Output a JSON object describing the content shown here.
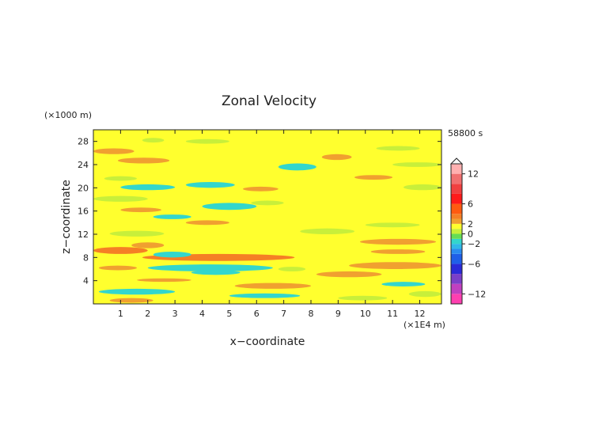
{
  "chart_data": {
    "type": "heatmap",
    "title": "Zonal Velocity",
    "xlabel": "x−coordinate",
    "ylabel": "z−coordinate",
    "x_unit": "(×1E4 m)",
    "y_unit": "(×1000 m)",
    "time_label": "58800 s",
    "xlim": [
      0,
      12.8
    ],
    "ylim": [
      0,
      30
    ],
    "x_ticks": [
      1,
      2,
      3,
      4,
      5,
      6,
      7,
      8,
      9,
      10,
      11,
      12
    ],
    "y_ticks": [
      4,
      8,
      12,
      16,
      20,
      24,
      28
    ],
    "colorbar": {
      "range": [
        -14,
        14
      ],
      "tick_values": [
        12,
        6,
        2,
        0,
        -2,
        -6,
        -12
      ],
      "tick_labels": [
        "12",
        "6",
        "2",
        "0",
        "−2",
        "−6",
        "−12"
      ],
      "levels": [
        {
          "from": -14,
          "to": -12,
          "color": "#ff3fb0"
        },
        {
          "from": -12,
          "to": -10,
          "color": "#c040c0"
        },
        {
          "from": -10,
          "to": -8,
          "color": "#7a3fc8"
        },
        {
          "from": -8,
          "to": -6,
          "color": "#2a2ad8"
        },
        {
          "from": -6,
          "to": -4,
          "color": "#1f5fe8"
        },
        {
          "from": -4,
          "to": -3,
          "color": "#2a8cf0"
        },
        {
          "from": -3,
          "to": -2,
          "color": "#30b8e8"
        },
        {
          "from": -2,
          "to": -1,
          "color": "#33d6cc"
        },
        {
          "from": -1,
          "to": 0,
          "color": "#66dd55"
        },
        {
          "from": 0,
          "to": 1,
          "color": "#c8ef3a"
        },
        {
          "from": 1,
          "to": 2,
          "color": "#ffff2e"
        },
        {
          "from": 2,
          "to": 3,
          "color": "#f0a030"
        },
        {
          "from": 3,
          "to": 4,
          "color": "#f57f25"
        },
        {
          "from": 4,
          "to": 6,
          "color": "#ff5a10"
        },
        {
          "from": 6,
          "to": 8,
          "color": "#ff1a1a"
        },
        {
          "from": 8,
          "to": 10,
          "color": "#f04040"
        },
        {
          "from": 10,
          "to": 12,
          "color": "#f07070"
        },
        {
          "from": 12,
          "to": 14,
          "color": "#ffb0b0"
        }
      ]
    },
    "background_value": 1.5,
    "features": [
      {
        "x": [
          0.0,
          1.5
        ],
        "z": [
          25.8,
          26.8
        ],
        "v": 2.5
      },
      {
        "x": [
          0.9,
          2.8
        ],
        "z": [
          24.2,
          25.2
        ],
        "v": 2.5
      },
      {
        "x": [
          1.8,
          2.6
        ],
        "z": [
          27.8,
          28.6
        ],
        "v": 0.5
      },
      {
        "x": [
          0.4,
          1.6
        ],
        "z": [
          21.2,
          22.0
        ],
        "v": 0.5
      },
      {
        "x": [
          3.4,
          5.0
        ],
        "z": [
          27.6,
          28.4
        ],
        "v": 0.5
      },
      {
        "x": [
          1.0,
          3.0
        ],
        "z": [
          19.6,
          20.6
        ],
        "v": -1.5
      },
      {
        "x": [
          3.4,
          5.2
        ],
        "z": [
          20.0,
          21.0
        ],
        "v": -1.5
      },
      {
        "x": [
          5.5,
          6.8
        ],
        "z": [
          19.4,
          20.2
        ],
        "v": 2.5
      },
      {
        "x": [
          6.8,
          8.2
        ],
        "z": [
          23.0,
          24.2
        ],
        "v": -1.5
      },
      {
        "x": [
          8.4,
          9.5
        ],
        "z": [
          24.8,
          25.8
        ],
        "v": 2.5
      },
      {
        "x": [
          10.4,
          12.0
        ],
        "z": [
          26.4,
          27.2
        ],
        "v": 0.5
      },
      {
        "x": [
          11.0,
          12.8
        ],
        "z": [
          23.6,
          24.4
        ],
        "v": 0.5
      },
      {
        "x": [
          9.6,
          11.0
        ],
        "z": [
          21.4,
          22.2
        ],
        "v": 2.5
      },
      {
        "x": [
          0.0,
          2.0
        ],
        "z": [
          17.6,
          18.6
        ],
        "v": 0.5
      },
      {
        "x": [
          1.0,
          2.5
        ],
        "z": [
          15.8,
          16.6
        ],
        "v": 2.5
      },
      {
        "x": [
          2.2,
          3.6
        ],
        "z": [
          14.6,
          15.4
        ],
        "v": -1.5
      },
      {
        "x": [
          3.4,
          5.0
        ],
        "z": [
          13.6,
          14.4
        ],
        "v": 2.5
      },
      {
        "x": [
          4.0,
          6.0
        ],
        "z": [
          16.2,
          17.4
        ],
        "v": -1.5
      },
      {
        "x": [
          5.8,
          7.0
        ],
        "z": [
          17.0,
          17.8
        ],
        "v": 0.5
      },
      {
        "x": [
          0.6,
          2.6
        ],
        "z": [
          11.6,
          12.6
        ],
        "v": 0.5
      },
      {
        "x": [
          7.6,
          9.6
        ],
        "z": [
          12.0,
          13.0
        ],
        "v": 0.5
      },
      {
        "x": [
          10.0,
          12.0
        ],
        "z": [
          13.2,
          14.0
        ],
        "v": 0.5
      },
      {
        "x": [
          9.8,
          12.6
        ],
        "z": [
          10.2,
          11.2
        ],
        "v": 2.5
      },
      {
        "x": [
          11.4,
          12.8
        ],
        "z": [
          19.6,
          20.6
        ],
        "v": 0.5
      },
      {
        "x": [
          0.0,
          2.0
        ],
        "z": [
          8.6,
          9.8
        ],
        "v": 3.5
      },
      {
        "x": [
          1.8,
          7.4
        ],
        "z": [
          7.4,
          8.6
        ],
        "v": 3.5
      },
      {
        "x": [
          2.2,
          3.6
        ],
        "z": [
          8.0,
          9.0
        ],
        "v": -1.5
      },
      {
        "x": [
          1.4,
          2.6
        ],
        "z": [
          9.6,
          10.6
        ],
        "v": 2.5
      },
      {
        "x": [
          2.0,
          6.6
        ],
        "z": [
          5.6,
          6.8
        ],
        "v": -1.5
      },
      {
        "x": [
          3.6,
          5.4
        ],
        "z": [
          5.0,
          5.8
        ],
        "v": -1.5
      },
      {
        "x": [
          0.2,
          1.6
        ],
        "z": [
          5.8,
          6.6
        ],
        "v": 2.5
      },
      {
        "x": [
          1.6,
          3.6
        ],
        "z": [
          3.8,
          4.4
        ],
        "v": 2.5
      },
      {
        "x": [
          5.2,
          8.0
        ],
        "z": [
          2.6,
          3.6
        ],
        "v": 2.5
      },
      {
        "x": [
          6.8,
          7.8
        ],
        "z": [
          5.6,
          6.4
        ],
        "v": 0.5
      },
      {
        "x": [
          8.2,
          10.6
        ],
        "z": [
          4.6,
          5.6
        ],
        "v": 2.5
      },
      {
        "x": [
          9.4,
          12.8
        ],
        "z": [
          6.0,
          7.2
        ],
        "v": 2.5
      },
      {
        "x": [
          10.2,
          12.2
        ],
        "z": [
          8.6,
          9.4
        ],
        "v": 2.5
      },
      {
        "x": [
          0.2,
          3.0
        ],
        "z": [
          1.6,
          2.6
        ],
        "v": -1.5
      },
      {
        "x": [
          5.0,
          7.6
        ],
        "z": [
          1.0,
          1.8
        ],
        "v": -1.5
      },
      {
        "x": [
          0.6,
          2.2
        ],
        "z": [
          0.2,
          1.0
        ],
        "v": 2.5
      },
      {
        "x": [
          9.0,
          10.8
        ],
        "z": [
          0.6,
          1.4
        ],
        "v": 0.5
      },
      {
        "x": [
          10.6,
          12.2
        ],
        "z": [
          3.0,
          3.8
        ],
        "v": -1.5
      },
      {
        "x": [
          11.6,
          12.8
        ],
        "z": [
          1.2,
          2.2
        ],
        "v": 0.5
      }
    ]
  }
}
